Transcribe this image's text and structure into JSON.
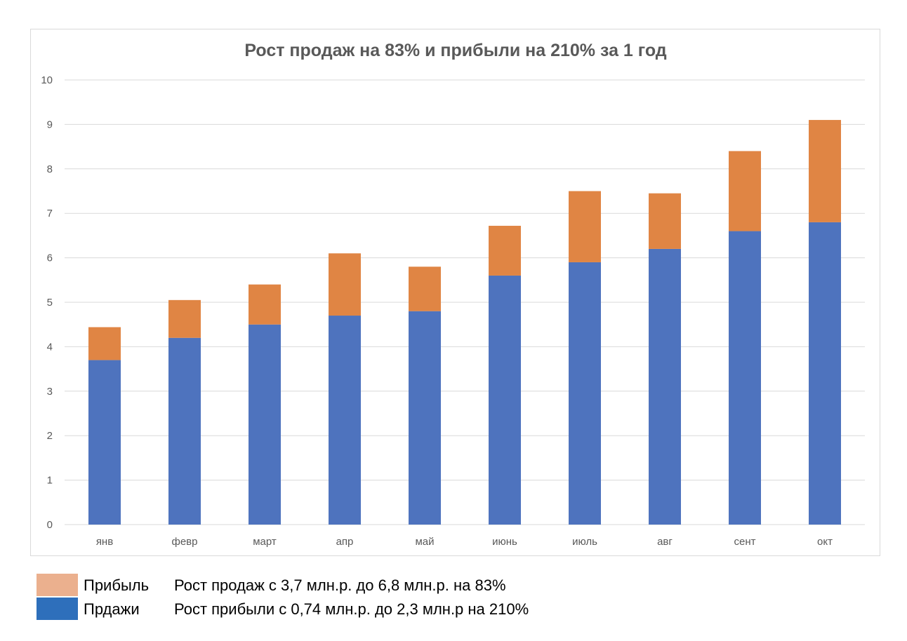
{
  "chart_data": {
    "type": "bar",
    "stacked": true,
    "title": "Рост продаж на 83% и прибыли на 210% за 1 год",
    "xlabel": "",
    "ylabel": "",
    "ylim": [
      0,
      10
    ],
    "yticks": [
      "0",
      "1",
      "2",
      "3",
      "4",
      "5",
      "6",
      "7",
      "8",
      "9",
      "10"
    ],
    "grid": true,
    "categories": [
      "янв",
      "февр",
      "март",
      "апр",
      "май",
      "июнь",
      "июль",
      "авг",
      "сент",
      "окт"
    ],
    "series": [
      {
        "name": "Прдажи",
        "color": "#4e73be",
        "values": [
          3.7,
          4.2,
          4.5,
          4.7,
          4.8,
          5.6,
          5.9,
          6.2,
          6.6,
          6.8
        ]
      },
      {
        "name": "Прибыль",
        "color": "#e08544",
        "values": [
          0.74,
          0.85,
          0.9,
          1.4,
          1.0,
          1.12,
          1.6,
          1.25,
          1.8,
          2.3
        ]
      }
    ]
  },
  "legend": {
    "items": [
      {
        "name": "Прибыль",
        "color": "#ebb08e",
        "note": "Рост продаж с 3,7 млн.р. до 6,8 млн.р. на 83%"
      },
      {
        "name": "Прдажи",
        "color": "#2e6fbb",
        "note": "Рост прибыли с 0,74 млн.р. до 2,3 млн.р на 210%"
      }
    ]
  }
}
